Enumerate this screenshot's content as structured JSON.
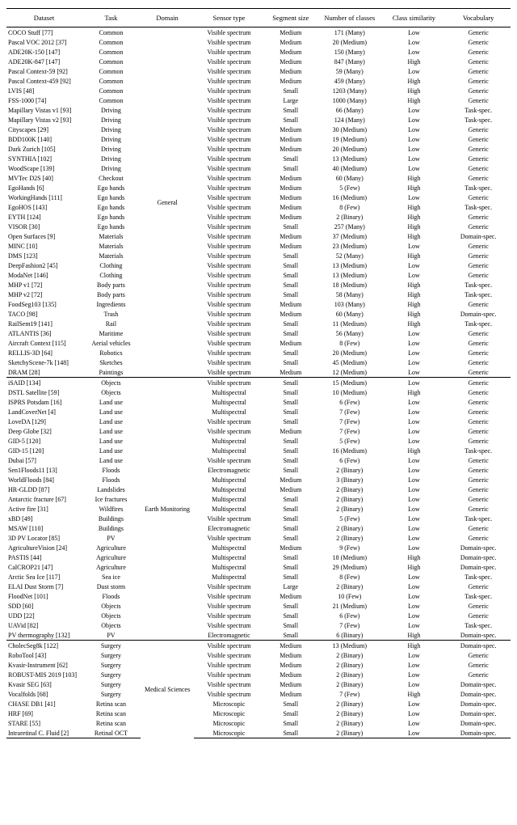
{
  "headers": [
    "Dataset",
    "Task",
    "Domain",
    "Sensor type",
    "Segment size",
    "Number of classes",
    "Class similarity",
    "Vocabulary"
  ],
  "groups": [
    {
      "domain": "General",
      "rows": [
        [
          "COCO Stuff [77]",
          "Common",
          "Visible spectrum",
          "Medium",
          "171 (Many)",
          "Low",
          "Generic"
        ],
        [
          "Pascal VOC 2012 [37]",
          "Common",
          "Visible spectrum",
          "Medium",
          "20 (Medium)",
          "Low",
          "Generic"
        ],
        [
          "ADE20K-150 [147]",
          "Common",
          "Visible spectrum",
          "Medium",
          "150 (Many)",
          "Low",
          "Generic"
        ],
        [
          "ADE20K-847 [147]",
          "Common",
          "Visible spectrum",
          "Medium",
          "847 (Many)",
          "High",
          "Generic"
        ],
        [
          "Pascal Context-59 [92]",
          "Common",
          "Visible spectrum",
          "Medium",
          "59 (Many)",
          "Low",
          "Generic"
        ],
        [
          "Pascal Context-459 [92]",
          "Common",
          "Visible spectrum",
          "Medium",
          "459 (Many)",
          "High",
          "Generic"
        ],
        [
          "LVIS [48]",
          "Common",
          "Visible spectrum",
          "Small",
          "1203 (Many)",
          "High",
          "Generic"
        ],
        [
          "FSS-1000 [74]",
          "Common",
          "Visible spectrum",
          "Large",
          "1000 (Many)",
          "High",
          "Generic"
        ],
        [
          "Mapillary Vistas v1 [93]",
          "Driving",
          "Visible spectrum",
          "Small",
          "66 (Many)",
          "Low",
          "Task-spec."
        ],
        [
          "Mapillary Vistas v2 [93]",
          "Driving",
          "Visible spectrum",
          "Small",
          "124 (Many)",
          "Low",
          "Task-spec."
        ],
        [
          "Cityscapes [29]",
          "Driving",
          "Visible spectrum",
          "Medium",
          "30 (Medium)",
          "Low",
          "Generic"
        ],
        [
          "BDD100K [140]",
          "Driving",
          "Visible spectrum",
          "Medium",
          "19 (Medium)",
          "Low",
          "Generic"
        ],
        [
          "Dark Zurich [105]",
          "Driving",
          "Visible spectrum",
          "Medium",
          "20 (Medium)",
          "Low",
          "Generic"
        ],
        [
          "SYNTHIA [102]",
          "Driving",
          "Visible spectrum",
          "Small",
          "13 (Medium)",
          "Low",
          "Generic"
        ],
        [
          "WoodScape [139]",
          "Driving",
          "Visible spectrum",
          "Small",
          "40 (Medium)",
          "Low",
          "Generic"
        ],
        [
          "MVTec D2S [40]",
          "Checkout",
          "Visible spectrum",
          "Medium",
          "60 (Many)",
          "High",
          "Generic"
        ],
        [
          "EgoHands [6]",
          "Ego hands",
          "Visible spectrum",
          "Medium",
          "5 (Few)",
          "High",
          "Task-spec."
        ],
        [
          "WorkingHands [111]",
          "Ego hands",
          "Visible spectrum",
          "Medium",
          "16 (Medium)",
          "Low",
          "Generic"
        ],
        [
          "EgoHOS [143]",
          "Ego hands",
          "Visible spectrum",
          "Medium",
          "8 (Few)",
          "High",
          "Task-spec."
        ],
        [
          "EYTH [124]",
          "Ego hands",
          "Visible spectrum",
          "Medium",
          "2 (Binary)",
          "High",
          "Generic"
        ],
        [
          "VISOR [30]",
          "Ego hands",
          "Visible spectrum",
          "Small",
          "257 (Many)",
          "High",
          "Generic"
        ],
        [
          "Open Surfaces [9]",
          "Materials",
          "Visible spectrum",
          "Medium",
          "37 (Medium)",
          "High",
          "Domain-spec."
        ],
        [
          "MINC [10]",
          "Materials",
          "Visible spectrum",
          "Medium",
          "23 (Medium)",
          "Low",
          "Generic"
        ],
        [
          "DMS [123]",
          "Materials",
          "Visible spectrum",
          "Small",
          "52 (Many)",
          "High",
          "Generic"
        ],
        [
          "DeepFashion2 [45]",
          "Clothing",
          "Visible spectrum",
          "Small",
          "13 (Medium)",
          "Low",
          "Generic"
        ],
        [
          "ModaNet [146]",
          "Clothing",
          "Visible spectrum",
          "Small",
          "13 (Medium)",
          "Low",
          "Generic"
        ],
        [
          "MHP v1 [72]",
          "Body parts",
          "Visible spectrum",
          "Small",
          "18 (Medium)",
          "High",
          "Task-spec."
        ],
        [
          "MHP v2 [72]",
          "Body parts",
          "Visible spectrum",
          "Small",
          "58 (Many)",
          "High",
          "Task-spec."
        ],
        [
          "FoodSeg103 [135]",
          "Ingredients",
          "Visible spectrum",
          "Medium",
          "103 (Many)",
          "High",
          "Generic"
        ],
        [
          "TACO [98]",
          "Trash",
          "Visible spectrum",
          "Medium",
          "60 (Many)",
          "High",
          "Domain-spec."
        ],
        [
          "RailSem19 [141]",
          "Rail",
          "Visible spectrum",
          "Small",
          "11 (Medium)",
          "High",
          "Task-spec."
        ],
        [
          "ATLANTIS [36]",
          "Maritime",
          "Visible spectrum",
          "Small",
          "56 (Many)",
          "Low",
          "Generic"
        ],
        [
          "Aircraft Context [115]",
          "Aerial vehicles",
          "Visible spectrum",
          "Medium",
          "8 (Few)",
          "Low",
          "Generic"
        ],
        [
          "RELLIS-3D [64]",
          "Robotics",
          "Visible spectrum",
          "Small",
          "20 (Medium)",
          "Low",
          "Generic"
        ],
        [
          "SketchyScene-7k [148]",
          "Sketches",
          "Visible spectrum",
          "Small",
          "45 (Medium)",
          "Low",
          "Generic"
        ],
        [
          "DRAM [28]",
          "Paintings",
          "Visible spectrum",
          "Medium",
          "12 (Medium)",
          "Low",
          "Generic"
        ]
      ]
    },
    {
      "domain": "Earth Monitoring",
      "rows": [
        [
          "iSAID [134]",
          "Objects",
          "Visible spectrum",
          "Small",
          "15 (Medium)",
          "Low",
          "Generic"
        ],
        [
          "DSTL Satellite [59]",
          "Objects",
          "Multispectral",
          "Small",
          "10 (Medium)",
          "High",
          "Generic"
        ],
        [
          "ISPRS Potsdam [16]",
          "Land use",
          "Multispectral",
          "Small",
          "6 (Few)",
          "Low",
          "Generic"
        ],
        [
          "LandCoverNet [4]",
          "Land use",
          "Multispectral",
          "Small",
          "7 (Few)",
          "Low",
          "Generic"
        ],
        [
          "LoveDA [129]",
          "Land use",
          "Visible spectrum",
          "Small",
          "7 (Few)",
          "Low",
          "Generic"
        ],
        [
          "Deep Globe [32]",
          "Land use",
          "Visible spectrum",
          "Medium",
          "7 (Few)",
          "Low",
          "Generic"
        ],
        [
          "GID-5 [120]",
          "Land use",
          "Multispectral",
          "Small",
          "5 (Few)",
          "Low",
          "Generic"
        ],
        [
          "GID-15 [120]",
          "Land use",
          "Multispectral",
          "Small",
          "16 (Medium)",
          "High",
          "Task-spec."
        ],
        [
          "Dubai [57]",
          "Land use",
          "Visible spectrum",
          "Small",
          "6 (Few)",
          "Low",
          "Generic"
        ],
        [
          "Sen1Floods11 [13]",
          "Floods",
          "Electromagnetic",
          "Small",
          "2 (Binary)",
          "Low",
          "Generic"
        ],
        [
          "WorldFloods [84]",
          "Floods",
          "Multispectral",
          "Medium",
          "3 (Binary)",
          "Low",
          "Generic"
        ],
        [
          "HR-GLDD [87]",
          "Landslides",
          "Multispectral",
          "Medium",
          "2 (Binary)",
          "Low",
          "Generic"
        ],
        [
          "Antarctic fracture [67]",
          "Ice fractures",
          "Multispectral",
          "Small",
          "2 (Binary)",
          "Low",
          "Generic"
        ],
        [
          "Active fire [31]",
          "Wildfires",
          "Multispectral",
          "Small",
          "2 (Binary)",
          "Low",
          "Generic"
        ],
        [
          "xBD [49]",
          "Buildings",
          "Visible spectrum",
          "Small",
          "5 (Few)",
          "Low",
          "Task-spec."
        ],
        [
          "MSAW [110]",
          "Buildings",
          "Electromagnetic",
          "Small",
          "2 (Binary)",
          "Low",
          "Generic"
        ],
        [
          "3D PV Locator [85]",
          "PV",
          "Visible spectrum",
          "Small",
          "2 (Binary)",
          "Low",
          "Generic"
        ],
        [
          "AgricultureVision [24]",
          "Agriculture",
          "Multispectral",
          "Medium",
          "9 (Few)",
          "Low",
          "Domain-spec."
        ],
        [
          "PASTIS [44]",
          "Agriculture",
          "Multispectral",
          "Small",
          "18 (Medium)",
          "High",
          "Domain-spec."
        ],
        [
          "CalCROP21 [47]",
          "Agriculture",
          "Multispectral",
          "Small",
          "29 (Medium)",
          "High",
          "Domain-spec."
        ],
        [
          "Arctic Sea Ice [117]",
          "Sea ice",
          "Multispectral",
          "Small",
          "8 (Few)",
          "Low",
          "Task-spec."
        ],
        [
          "ELAI Dust Storm [7]",
          "Dust storm",
          "Visible spectrum",
          "Large",
          "2 (Binary)",
          "Low",
          "Generic"
        ],
        [
          "FloodNet [101]",
          "Floods",
          "Visible spectrum",
          "Medium",
          "10 (Few)",
          "Low",
          "Task-spec."
        ],
        [
          "SDD [60]",
          "Objects",
          "Visible spectrum",
          "Small",
          "21 (Medium)",
          "Low",
          "Generic"
        ],
        [
          "UDD [22]",
          "Objects",
          "Visible spectrum",
          "Small",
          "6 (Few)",
          "Low",
          "Generic"
        ],
        [
          "UAVid [82]",
          "Objects",
          "Visible spectrum",
          "Small",
          "7 (Few)",
          "Low",
          "Task-spec."
        ],
        [
          "PV thermography [132]",
          "PV",
          "Electromagnetic",
          "Small",
          "6 (Binary)",
          "High",
          "Domain-spec."
        ]
      ]
    },
    {
      "domain": "Medical Sciences",
      "rows": [
        [
          "CholecSeg8k [122]",
          "Surgery",
          "Visible spectrum",
          "Medium",
          "13 (Medium)",
          "High",
          "Domain-spec."
        ],
        [
          "RoboTool [43]",
          "Surgery",
          "Visible spectrum",
          "Medium",
          "2 (Binary)",
          "Low",
          "Generic"
        ],
        [
          "Kvasir-Instrument [62]",
          "Surgery",
          "Visible spectrum",
          "Medium",
          "2 (Binary)",
          "Low",
          "Generic"
        ],
        [
          "ROBUST-MIS 2019 [103]",
          "Surgery",
          "Visible spectrum",
          "Medium",
          "2 (Binary)",
          "Low",
          "Generic"
        ],
        [
          "Kvasir SEG [63]",
          "Surgery",
          "Visible spectrum",
          "Medium",
          "2 (Binary)",
          "Low",
          "Domain-spec."
        ],
        [
          "Vocalfolds [68]",
          "Surgery",
          "Visible spectrum",
          "Medium",
          "7 (Few)",
          "High",
          "Domain-spec."
        ],
        [
          "CHASE DB1 [41]",
          "Retina scan",
          "Microscopic",
          "Small",
          "2 (Binary)",
          "Low",
          "Domain-spec."
        ],
        [
          "HRF [69]",
          "Retina scan",
          "Microscopic",
          "Small",
          "2 (Binary)",
          "Low",
          "Domain-spec."
        ],
        [
          "STARE [55]",
          "Retina scan",
          "Microscopic",
          "Small",
          "2 (Binary)",
          "Low",
          "Domain-spec."
        ],
        [
          "Intraretinal C. Fluid [2]",
          "Retinal OCT",
          "Microscopic",
          "Small",
          "2 (Binary)",
          "Low",
          "Domain-spec."
        ]
      ]
    }
  ]
}
